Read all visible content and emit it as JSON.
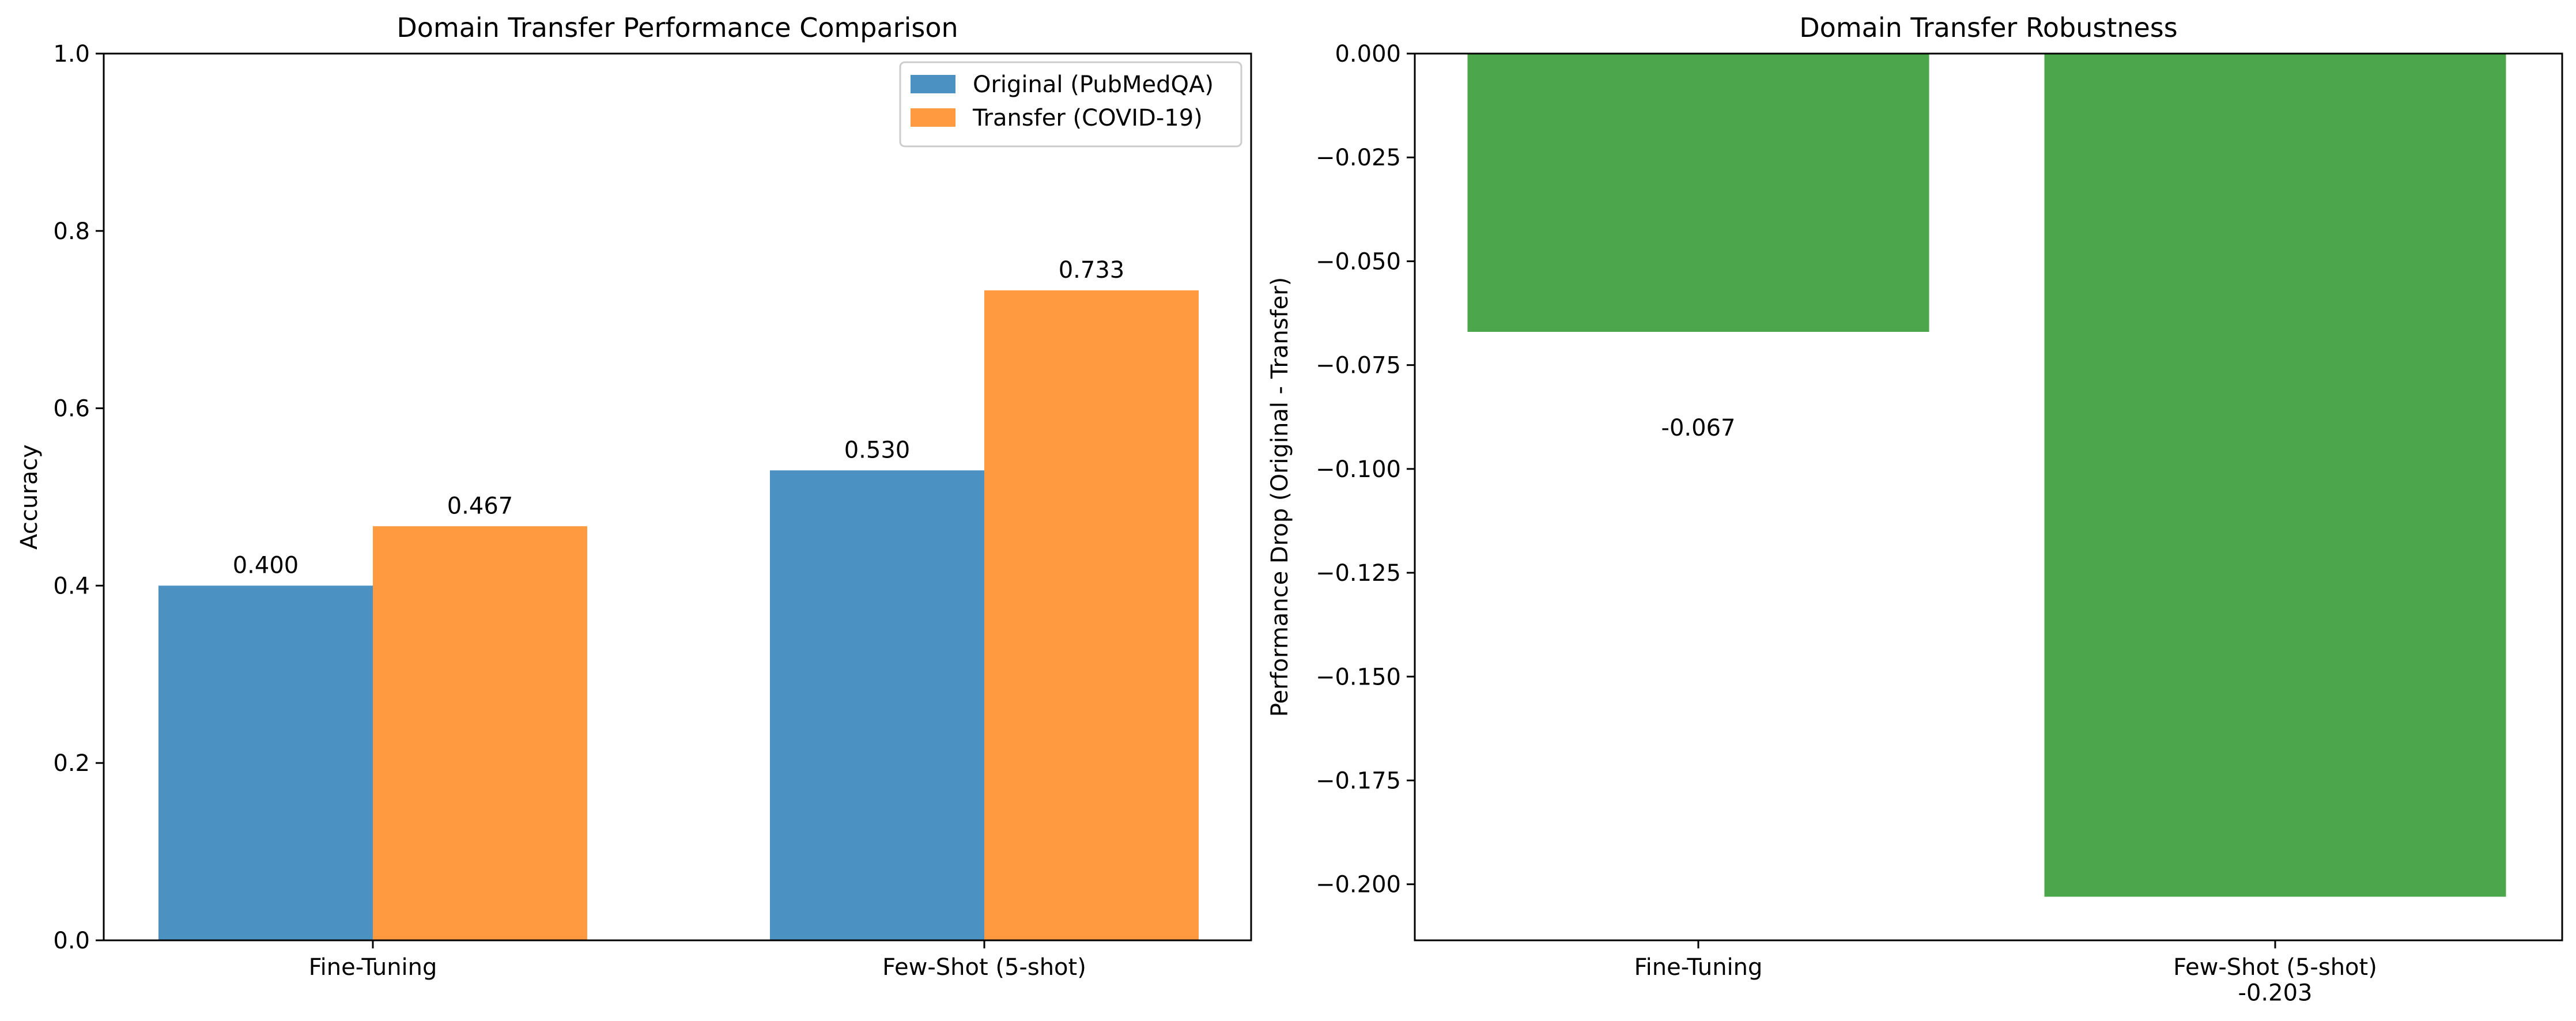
{
  "chart_data": [
    {
      "type": "bar",
      "title": "Domain Transfer Performance Comparison",
      "xlabel": "",
      "ylabel": "Accuracy",
      "categories": [
        "Fine-Tuning",
        "Few-Shot (5-shot)"
      ],
      "ylim": [
        0,
        1.0
      ],
      "yticks": [
        "0.0",
        "0.2",
        "0.4",
        "0.6",
        "0.8",
        "1.0"
      ],
      "series": [
        {
          "name": "Original (PubMedQA)",
          "color": "#4b91c2",
          "values": [
            0.4,
            0.53
          ],
          "labels": [
            "0.400",
            "0.530"
          ]
        },
        {
          "name": "Transfer (COVID-19)",
          "color": "#ff9a40",
          "values": [
            0.467,
            0.733
          ],
          "labels": [
            "0.467",
            "0.733"
          ]
        }
      ],
      "legend": "top-right",
      "grid": false
    },
    {
      "type": "bar",
      "title": "Domain Transfer Robustness",
      "xlabel": "",
      "ylabel": "Performance Drop (Original - Transfer)",
      "categories": [
        "Fine-Tuning",
        "Few-Shot (5-shot)"
      ],
      "ylim": [
        -0.2135,
        0.0
      ],
      "yticks": [
        "0.000",
        "−0.025",
        "−0.050",
        "−0.075",
        "−0.100",
        "−0.125",
        "−0.150",
        "−0.175",
        "−0.200"
      ],
      "series": [
        {
          "color": "#4ca64c",
          "values": [
            -0.067,
            -0.203
          ],
          "labels": [
            "-0.067",
            "-0.203"
          ]
        }
      ],
      "legend": "none",
      "grid": false
    }
  ]
}
